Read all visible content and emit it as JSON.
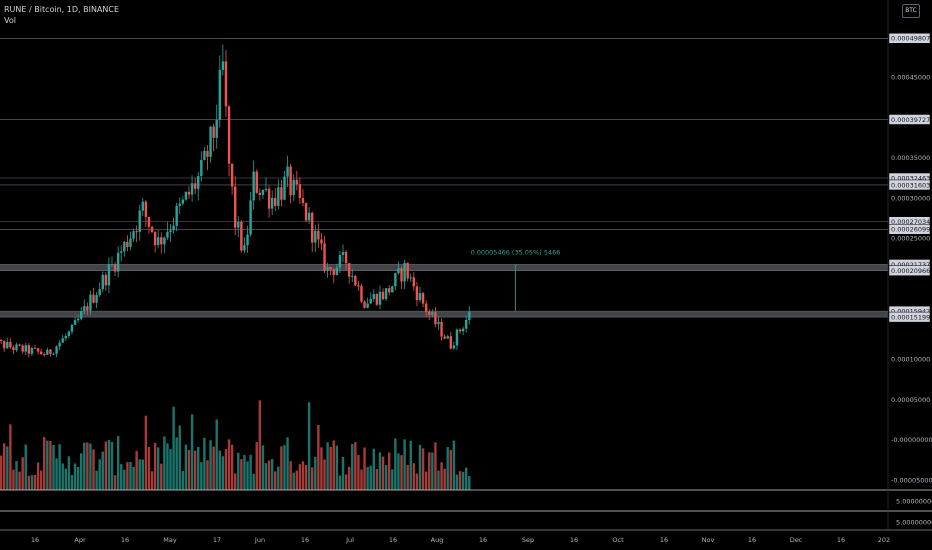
{
  "header": {
    "symbol_line": "RUNE / Bitcoin, 1D, BINANCE",
    "volume_label": "Vol"
  },
  "currency_badge": "BTC",
  "colors": {
    "up": "#26a69a",
    "down": "#ef5350",
    "band": "#787b86",
    "bg": "#000000"
  },
  "chart_data": {
    "type": "candlestick",
    "title": "RUNE / Bitcoin, 1D, BINANCE",
    "price_axis_labels": [
      "0.00045000",
      "0.00035000",
      "0.00030000",
      "0.00025000",
      "0.00010000",
      "0.00005000",
      "-0.00000000",
      "-0.00005000"
    ],
    "price_axis_ticks": [
      0.00045,
      0.00035,
      0.0003,
      0.00025,
      0.0001,
      5e-05,
      0.0,
      -5e-05
    ],
    "volume_axis_labels": [
      "5.00000000",
      "5.00000000"
    ],
    "x_tick_labels": [
      "16",
      "Apr",
      "16",
      "May",
      "17",
      "Jun",
      "16",
      "Jul",
      "16",
      "Aug",
      "16",
      "Sep",
      "16",
      "Oct",
      "16",
      "Nov",
      "16",
      "Dec",
      "16",
      "202"
    ],
    "horizontal_levels": [
      {
        "label": "0.00049807",
        "value": 0.00049807
      },
      {
        "label": "0.00039727",
        "value": 0.00039727
      },
      {
        "label": "0.00032463",
        "value": 0.00032463
      },
      {
        "label": "0.00031603",
        "value": 0.00031603
      },
      {
        "label": "0.00027034",
        "value": 0.00027034
      },
      {
        "label": "0.00026099",
        "value": 0.00026099
      },
      {
        "label": "0.00021737",
        "value": 0.00021737
      },
      {
        "label": "0.00020966",
        "value": 0.00020966
      },
      {
        "label": "0.00015942",
        "value": 0.00015942
      },
      {
        "label": "0.00015199",
        "value": 0.00015199
      }
    ],
    "zones": [
      {
        "low": 0.00020966,
        "high": 0.00021737
      },
      {
        "low": 0.00015199,
        "high": 0.00015942
      }
    ],
    "measure_label": "0.00005466 (35.05%) 5466",
    "series_anchors": [
      {
        "date": "2021-03-01",
        "price": 0.000122
      },
      {
        "date": "2021-03-10",
        "price": 0.000113
      },
      {
        "date": "2021-03-20",
        "price": 0.000106
      },
      {
        "date": "2021-03-28",
        "price": 0.000135
      },
      {
        "date": "2021-04-05",
        "price": 0.000185
      },
      {
        "date": "2021-04-14",
        "price": 0.00024
      },
      {
        "date": "2021-04-20",
        "price": 0.000285
      },
      {
        "date": "2021-04-25",
        "price": 0.000245
      },
      {
        "date": "2021-05-02",
        "price": 0.000285
      },
      {
        "date": "2021-05-09",
        "price": 0.00033
      },
      {
        "date": "2021-05-13",
        "price": 0.00038
      },
      {
        "date": "2021-05-16",
        "price": 0.00046
      },
      {
        "date": "2021-05-18",
        "price": 0.00034
      },
      {
        "date": "2021-05-20",
        "price": 0.00027
      },
      {
        "date": "2021-05-23",
        "price": 0.00023
      },
      {
        "date": "2021-05-26",
        "price": 0.00032
      },
      {
        "date": "2021-06-01",
        "price": 0.0003
      },
      {
        "date": "2021-06-06",
        "price": 0.00032
      },
      {
        "date": "2021-06-12",
        "price": 0.00028
      },
      {
        "date": "2021-06-19",
        "price": 0.00021
      },
      {
        "date": "2021-06-25",
        "price": 0.000222
      },
      {
        "date": "2021-07-01",
        "price": 0.000172
      },
      {
        "date": "2021-07-08",
        "price": 0.000182
      },
      {
        "date": "2021-07-14",
        "price": 0.000212
      },
      {
        "date": "2021-07-22",
        "price": 0.000155
      },
      {
        "date": "2021-07-29",
        "price": 0.000118
      },
      {
        "date": "2021-08-04",
        "price": 0.000155
      }
    ],
    "high_marker": {
      "value": 0.00049807
    },
    "low_marker": {
      "value": 9.95e-05
    }
  }
}
